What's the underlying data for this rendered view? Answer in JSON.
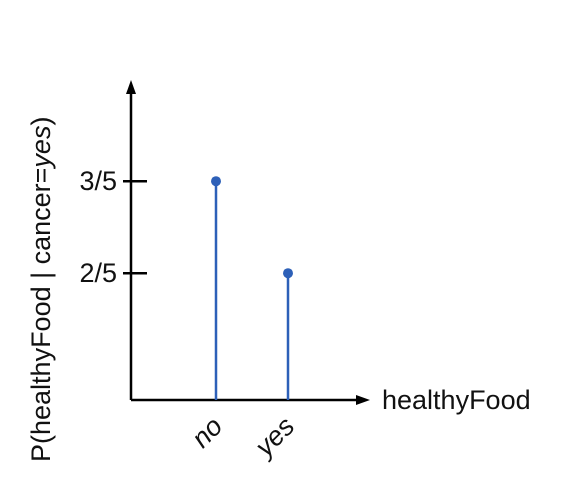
{
  "chart_data": {
    "type": "stem",
    "title": "",
    "xlabel": "healthyFood",
    "ylabel_parts": [
      "P(healthyFood | cancer=",
      "yes",
      ")"
    ],
    "categories": [
      "no",
      "yes"
    ],
    "values": [
      0.6,
      0.4
    ],
    "yticks": [
      {
        "value": 0.6,
        "label": "3/5"
      },
      {
        "value": 0.4,
        "label": "2/5"
      }
    ],
    "ylim": [
      0,
      1
    ],
    "grid": false,
    "color": "#2d60b8"
  }
}
